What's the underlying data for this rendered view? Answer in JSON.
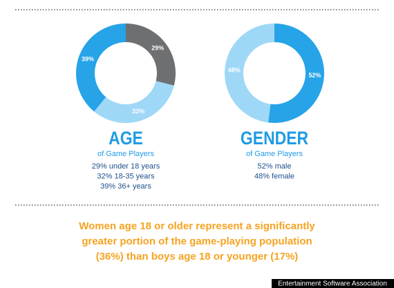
{
  "chart_data": [
    {
      "type": "donut",
      "title": "AGE",
      "subtitle": "of Game Players",
      "values": [
        29,
        32,
        39
      ],
      "value_labels": [
        "29%",
        "32%",
        "39%"
      ],
      "colors": [
        "#6e6f71",
        "#9fd8f7",
        "#27a3e8"
      ],
      "notes": [
        "29% under 18 years",
        "32% 18-35 years",
        "39% 36+ years"
      ]
    },
    {
      "type": "donut",
      "title": "GENDER",
      "subtitle": "of Game Players",
      "values": [
        52,
        48
      ],
      "value_labels": [
        "52%",
        "48%"
      ],
      "colors": [
        "#27a3e8",
        "#9fd8f7"
      ],
      "notes": [
        "52% male",
        "48% female"
      ]
    }
  ],
  "callout": [
    "Women age 18 or older represent a significantly",
    "greater portion of the game-playing population",
    "(36%) than boys age 18 or younger (17%)"
  ],
  "source": "Entertainment Software Association"
}
